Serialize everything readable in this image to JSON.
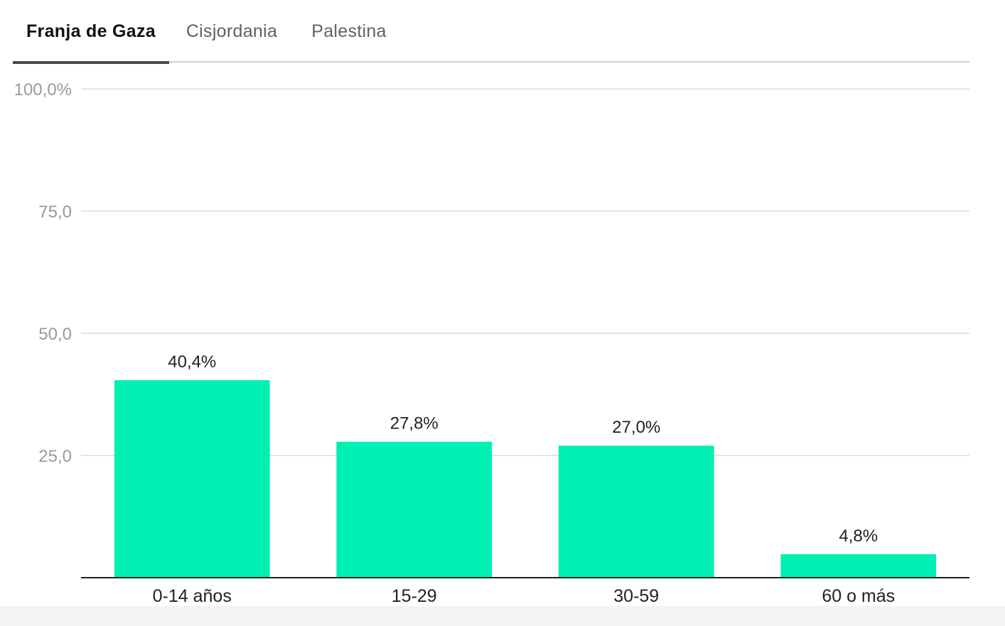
{
  "tabs": [
    {
      "label": "Franja de Gaza",
      "active": true
    },
    {
      "label": "Cisjordania",
      "active": false
    },
    {
      "label": "Palestina",
      "active": false
    }
  ],
  "colors": {
    "bar": "#00f0b4",
    "grid": "#e4e4e4",
    "axis": "#222222",
    "tick_label": "#9a9a9a",
    "category_label": "#222222",
    "value_label": "#222222"
  },
  "chart_data": {
    "type": "bar",
    "categories": [
      "0-14 años",
      "15-29",
      "30-59",
      "60 o más"
    ],
    "values": [
      40.4,
      27.8,
      27.0,
      4.8
    ],
    "value_labels": [
      "40,4%",
      "27,8%",
      "27,0%",
      "4,8%"
    ],
    "ylim": [
      0,
      100
    ],
    "yticks": [
      25,
      50,
      75,
      100
    ],
    "ytick_labels": [
      "25,0",
      "50,0",
      "75,0",
      "100,0%"
    ],
    "grid": true
  }
}
